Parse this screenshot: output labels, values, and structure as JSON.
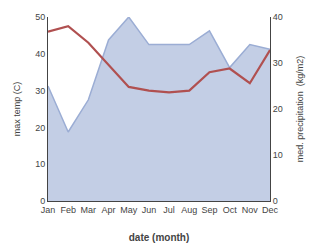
{
  "chart_data": {
    "type": "line",
    "xlabel": "date (month)",
    "ylabel": "max temp (C)",
    "y2label": "med. precipitation  (kg/m2)",
    "categories": [
      "Jan",
      "Feb",
      "Mar",
      "Apr",
      "May",
      "Jun",
      "Jul",
      "Aug",
      "Sep",
      "Oct",
      "Nov",
      "Dec"
    ],
    "series": [
      {
        "type": "line",
        "color": "#b05050",
        "values": [
          46,
          47.5,
          43,
          37,
          31,
          30,
          29.5,
          30,
          35,
          36,
          32,
          41
        ]
      },
      {
        "type": "area",
        "axis": "y2",
        "color": "#9badd4",
        "values": [
          25,
          15,
          22,
          35,
          40,
          34,
          34,
          34,
          37,
          29,
          34,
          33
        ]
      }
    ],
    "ylim": [
      0,
      50
    ],
    "yticks": [
      0,
      10,
      20,
      30,
      40,
      50
    ],
    "y2lim": [
      0,
      40
    ],
    "y2ticks": [
      0,
      10,
      20,
      30,
      40
    ],
    "grid": false,
    "background_color": "#ffffff"
  }
}
